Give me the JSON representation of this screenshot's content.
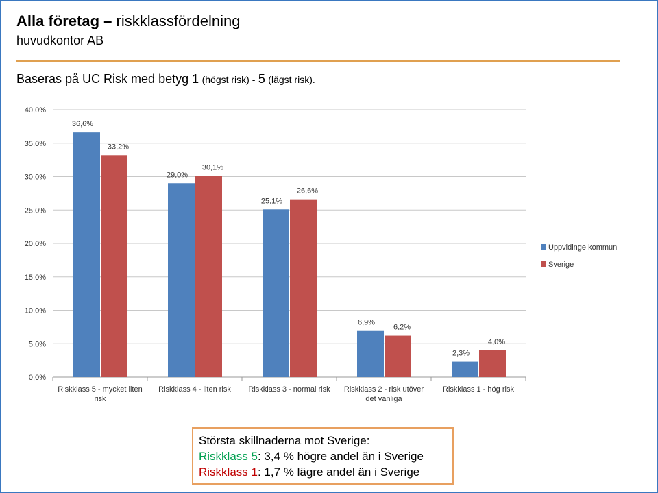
{
  "header": {
    "title_bold": "Alla företag –",
    "title_rest": "riskklassfördelning",
    "subtitle": "huvudkontor AB",
    "description_large": "Baseras på UC Risk med betyg 1",
    "description_small": "(högst risk) -",
    "description_large_2": "5",
    "description_small_2": "(lägst risk)."
  },
  "chart_data": {
    "type": "bar",
    "categories": [
      "Riskklass 5 - mycket liten risk",
      "Riskklass 4 - liten risk",
      "Riskklass 3 - normal risk",
      "Riskklass 2 - risk utöver det vanliga",
      "Riskklass 1 - hög risk"
    ],
    "series": [
      {
        "name": "Uppvidinge kommun",
        "color": "#4f81bd",
        "values": [
          36.6,
          29.0,
          25.1,
          6.9,
          2.3
        ],
        "value_labels": [
          "36,6%",
          "29,0%",
          "25,1%",
          "6,9%",
          "2,3%"
        ]
      },
      {
        "name": "Sverige",
        "color": "#c0504d",
        "values": [
          33.2,
          30.1,
          26.6,
          6.2,
          4.0
        ],
        "value_labels": [
          "33,2%",
          "30,1%",
          "26,6%",
          "6,2%",
          "4,0%"
        ]
      }
    ],
    "ylim": [
      0,
      40
    ],
    "yticks": [
      {
        "value": 0,
        "label": "0,0%"
      },
      {
        "value": 5,
        "label": "5,0%"
      },
      {
        "value": 10,
        "label": "10,0%"
      },
      {
        "value": 15,
        "label": "15,0%"
      },
      {
        "value": 20,
        "label": "20,0%"
      },
      {
        "value": 25,
        "label": "25,0%"
      },
      {
        "value": 30,
        "label": "30,0%"
      },
      {
        "value": 35,
        "label": "35,0%"
      },
      {
        "value": 40,
        "label": "40,0%"
      }
    ],
    "grid": true,
    "legend": "right"
  },
  "note": {
    "title": "Största skillnaderna mot Sverige:",
    "lines": [
      {
        "link": "Riskklass 5",
        "text": ": 3,4 % högre andel än i Sverige",
        "color": "#00a050"
      },
      {
        "link": "Riskklass 1",
        "text": ": 1,7 % lägre andel än i Sverige",
        "color": "#c00000"
      }
    ]
  }
}
